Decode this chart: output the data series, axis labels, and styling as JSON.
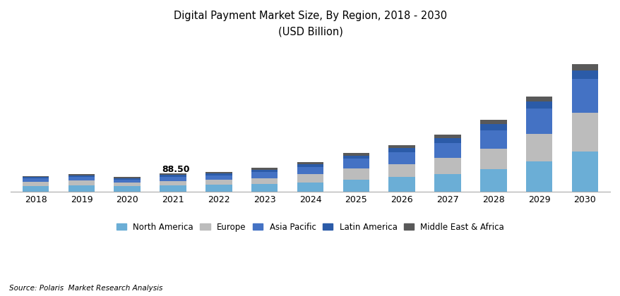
{
  "years": [
    2018,
    2019,
    2020,
    2021,
    2022,
    2023,
    2024,
    2025,
    2026,
    2027,
    2028,
    2029,
    2030
  ],
  "north_america": [
    26,
    30,
    25,
    29,
    32,
    36,
    44,
    58,
    70,
    85,
    108,
    145,
    190
  ],
  "europe": [
    20,
    22,
    19,
    22,
    24,
    28,
    38,
    52,
    62,
    75,
    95,
    130,
    185
  ],
  "asia_pacific": [
    16,
    18,
    14,
    20,
    20,
    28,
    36,
    46,
    55,
    70,
    88,
    120,
    160
  ],
  "latin_america": [
    7,
    8,
    6,
    10,
    10,
    12,
    14,
    16,
    20,
    24,
    30,
    35,
    42
  ],
  "mea": [
    5,
    6,
    5,
    7,
    7,
    8,
    9,
    11,
    13,
    16,
    19,
    23,
    28
  ],
  "annotation_year": 2021,
  "annotation_text": "88.50",
  "colors": {
    "north_america": "#6baed6",
    "europe": "#bcbcbc",
    "asia_pacific": "#4472c4",
    "latin_america": "#2b5ba8",
    "mea": "#595959"
  },
  "title_line1": "Digital Payment Market Size, By Region, 2018 - 2030",
  "title_line2": "(USD Billion)",
  "source_text": "Source: Polaris  Market Research Analysis",
  "background_color": "#ffffff",
  "ylim": [
    0,
    700
  ]
}
